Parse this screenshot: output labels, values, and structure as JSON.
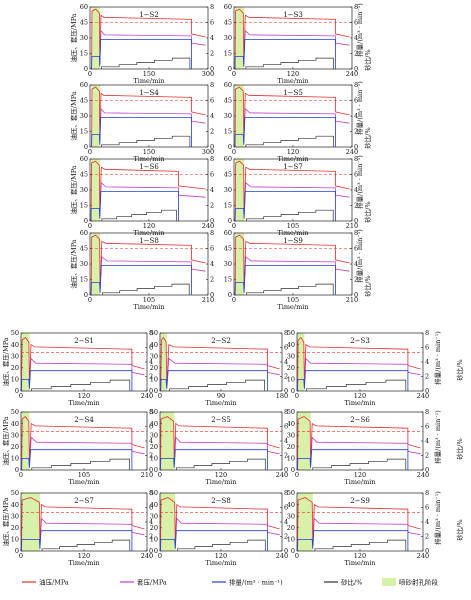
{
  "chart_data": {
    "type": "line",
    "common": {
      "left_ylabel": "油压、套压/MPa",
      "right_ylabel_top": "排量/(m³ · min⁻¹)",
      "right_ylabel_bottom": "砂比/%",
      "xlabel": "Time/min",
      "pressure_ylim": [
        0,
        60
      ],
      "pressure_yticks": [
        "0",
        "15",
        "30",
        "45",
        "60"
      ],
      "pressure_ylim_lower": [
        0,
        50
      ],
      "pressure_yticks_lower": [
        "0",
        "10",
        "20",
        "30",
        "40",
        "50"
      ],
      "rate_ylim": [
        0,
        8
      ],
      "rate_yticks": [
        "0",
        "2",
        "4",
        "6",
        "8"
      ],
      "sand_ylim": [
        0,
        80
      ],
      "sand_yticks": [
        "0",
        "20",
        "40",
        "60",
        "80"
      ]
    },
    "legend": {
      "items": [
        {
          "label": "油压/MPa",
          "color": "#e03030",
          "kind": "line"
        },
        {
          "label": "套压/MPa",
          "color": "#c040c0",
          "kind": "line"
        },
        {
          "label": "排量/(m³ · min⁻¹)",
          "color": "#2040d0",
          "kind": "line"
        },
        {
          "label": "砂比/%",
          "color": "#303030",
          "kind": "line"
        },
        {
          "label": "喷砂射孔阶段",
          "color": "#d8f0a8",
          "kind": "box"
        }
      ]
    },
    "panels": [
      {
        "title": "1−S2",
        "xmax": 300,
        "xticks": [
          "0",
          "150",
          "300"
        ],
        "xtick_values": [
          0,
          150,
          300
        ]
      },
      {
        "title": "1−S3",
        "xmax": 240,
        "xticks": [
          "0",
          "120",
          "240"
        ],
        "xtick_values": [
          0,
          120,
          240
        ]
      },
      {
        "title": "1−S4",
        "xmax": 300,
        "xticks": [
          "0",
          "150",
          "300"
        ],
        "xtick_values": [
          0,
          150,
          300
        ]
      },
      {
        "title": "1−S5",
        "xmax": 240,
        "xticks": [
          "0",
          "120",
          "240"
        ],
        "xtick_values": [
          0,
          120,
          240
        ]
      },
      {
        "title": "1−S6",
        "xmax": 240,
        "xticks": [
          "0",
          "120",
          "240"
        ],
        "xtick_values": [
          0,
          120,
          240
        ]
      },
      {
        "title": "1−S7",
        "xmax": 210,
        "xticks": [
          "0",
          "105",
          "210"
        ],
        "xtick_values": [
          0,
          105,
          210
        ]
      },
      {
        "title": "1−S8",
        "xmax": 210,
        "xticks": [
          "0",
          "105",
          "210"
        ],
        "xtick_values": [
          0,
          105,
          210
        ]
      },
      {
        "title": "1−S9",
        "xmax": 210,
        "xticks": [
          "0",
          "105",
          "210"
        ],
        "xtick_values": [
          0,
          105,
          210
        ]
      },
      {
        "title": "2−S1",
        "xmax": 240,
        "xticks": [
          "0",
          "120",
          "240"
        ],
        "xtick_values": [
          0,
          120,
          240
        ]
      },
      {
        "title": "2−S2",
        "xmax": 180,
        "xticks": [
          "0",
          "90",
          "180"
        ],
        "xtick_values": [
          0,
          90,
          180
        ]
      },
      {
        "title": "2−S3",
        "xmax": 240,
        "xticks": [
          "0",
          "120",
          "240"
        ],
        "xtick_values": [
          0,
          120,
          240
        ]
      },
      {
        "title": "2−S4",
        "xmax": 210,
        "xticks": [
          "0",
          "105",
          "210"
        ],
        "xtick_values": [
          0,
          105,
          210
        ]
      },
      {
        "title": "2−S5",
        "xmax": 240,
        "xticks": [
          "0",
          "120",
          "240"
        ],
        "xtick_values": [
          0,
          120,
          240
        ]
      },
      {
        "title": "2−S6",
        "xmax": 240,
        "xticks": [
          "0",
          "120",
          "240"
        ],
        "xtick_values": [
          0,
          120,
          240
        ]
      },
      {
        "title": "2−S7",
        "xmax": 240,
        "xticks": [
          "0",
          "120",
          "240"
        ],
        "xtick_values": [
          0,
          120,
          240
        ]
      },
      {
        "title": "2−S8",
        "xmax": 240,
        "xticks": [
          "0",
          "120",
          "240"
        ],
        "xtick_values": [
          0,
          120,
          240
        ]
      },
      {
        "title": "2−S9",
        "xmax": 240,
        "xticks": [
          "0",
          "120",
          "240"
        ],
        "xtick_values": [
          0,
          120,
          240
        ]
      }
    ]
  }
}
